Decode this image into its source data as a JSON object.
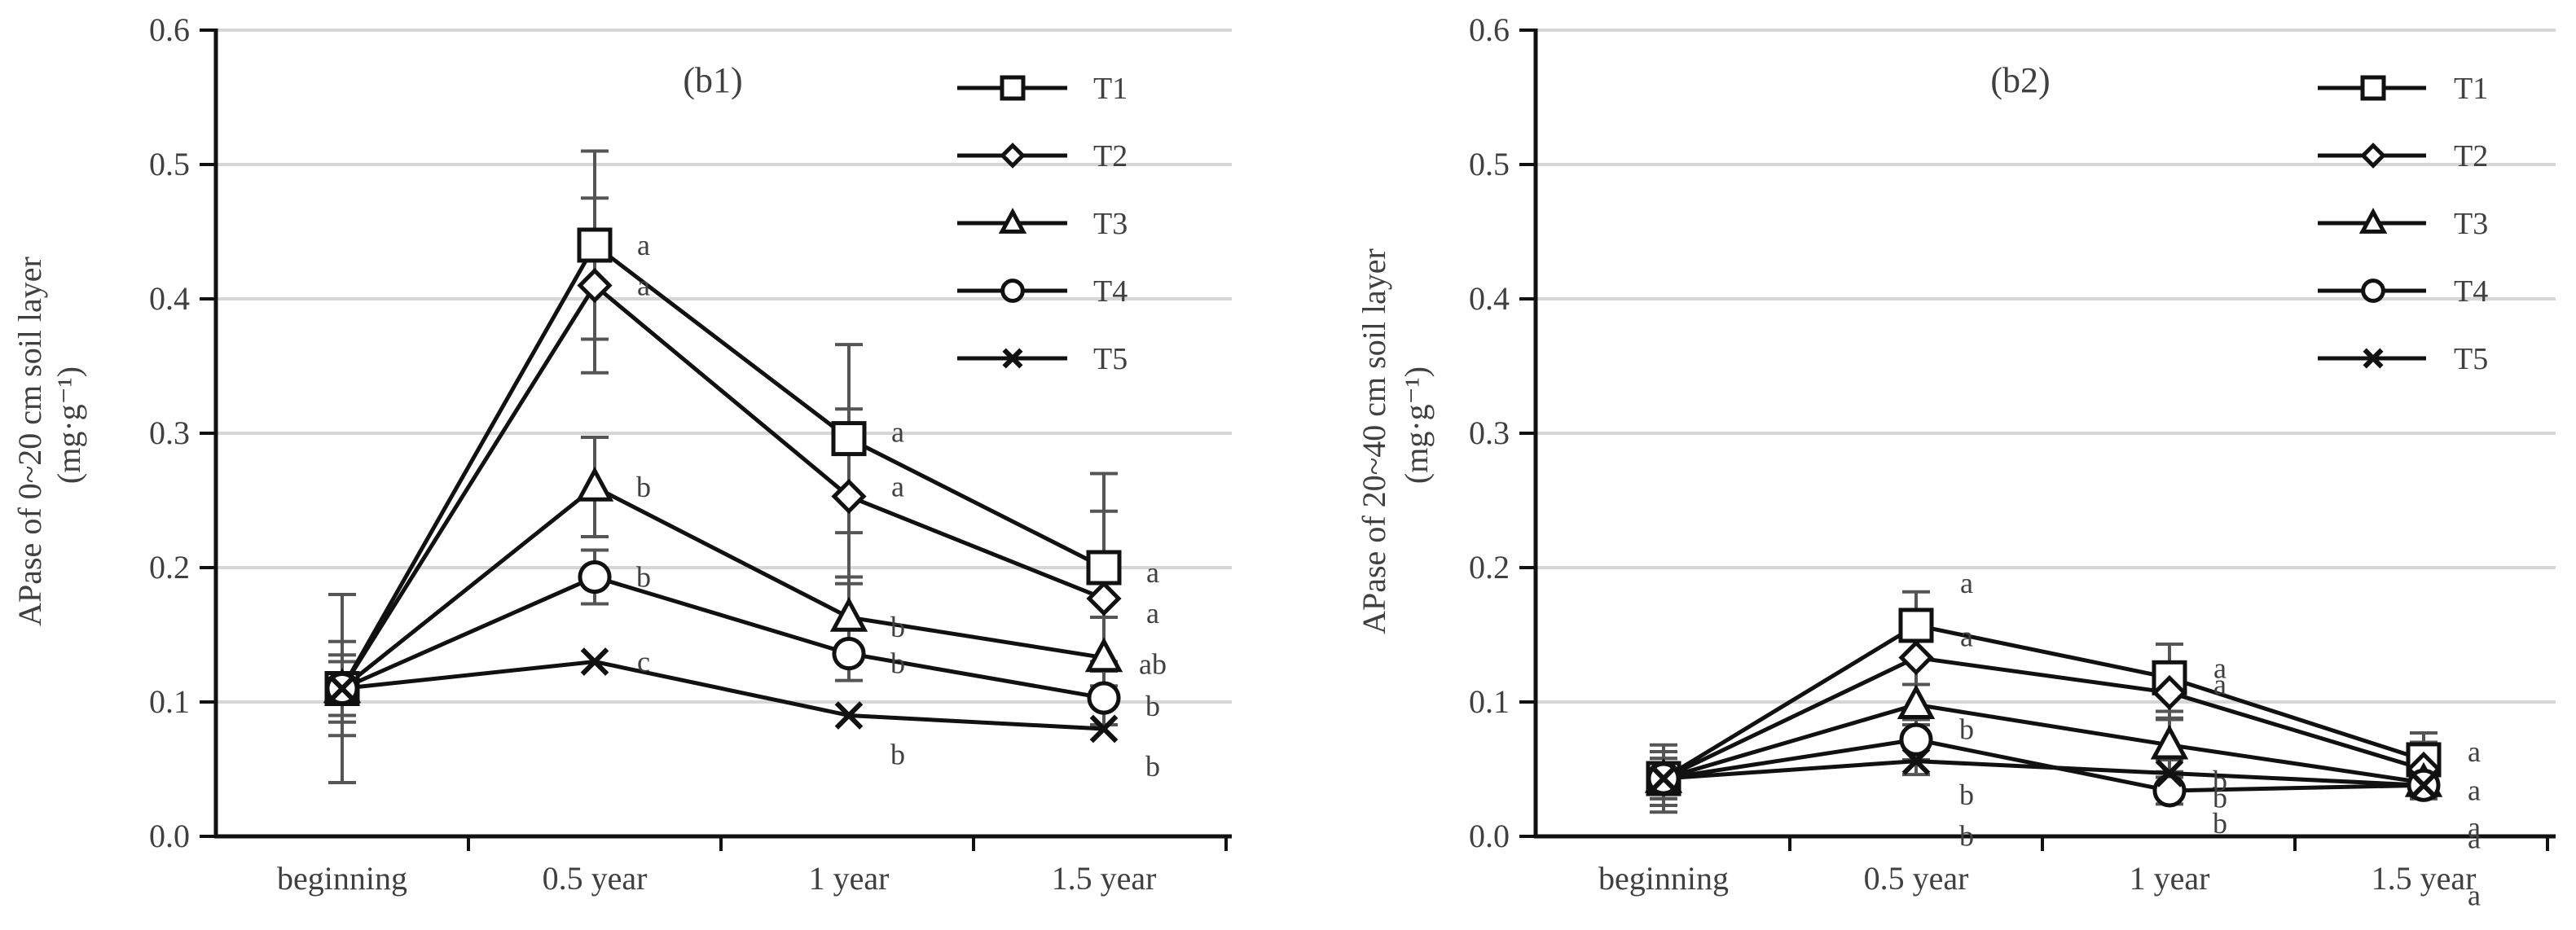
{
  "chart_data": [
    {
      "type": "line",
      "panel_label": "(b1)",
      "ylabel_line1": "APase of 0~20 cm soil layer",
      "ylabel_line2": "(mg·g⁻¹)",
      "xlabel": "",
      "categories": [
        "beginning",
        "0.5 year",
        "1 year",
        "1.5 year"
      ],
      "ylim": [
        0,
        0.6
      ],
      "yticks": [
        "0.0",
        "0.1",
        "0.2",
        "0.3",
        "0.4",
        "0.5",
        "0.6"
      ],
      "grid": true,
      "legend_position": "top-right",
      "series": [
        {
          "name": "T1",
          "marker": "square",
          "values": [
            0.11,
            0.44,
            0.296,
            0.2
          ],
          "errors": [
            0.07,
            0.07,
            0.07,
            0.07
          ],
          "labels": [
            "",
            "a",
            "a",
            "a"
          ]
        },
        {
          "name": "T2",
          "marker": "diamond",
          "values": [
            0.11,
            0.41,
            0.253,
            0.177
          ],
          "errors": [
            0.035,
            0.065,
            0.065,
            0.065
          ],
          "labels": [
            "",
            "a",
            "a",
            "a"
          ]
        },
        {
          "name": "T3",
          "marker": "triangle",
          "values": [
            0.11,
            0.26,
            0.163,
            0.133
          ],
          "errors": [
            0.025,
            0.037,
            0.03,
            0.03
          ],
          "labels": [
            "",
            "b",
            "b",
            "ab"
          ]
        },
        {
          "name": "T4",
          "marker": "circle",
          "values": [
            0.11,
            0.193,
            0.136,
            0.103
          ],
          "errors": [
            0.02,
            0.02,
            0.02,
            0.02
          ],
          "labels": [
            "",
            "b",
            "b",
            "b"
          ]
        },
        {
          "name": "T5",
          "marker": "x",
          "values": [
            0.11,
            0.13,
            0.09,
            0.08
          ],
          "errors": [
            0,
            0,
            0,
            0
          ],
          "labels": [
            "",
            "c",
            "b",
            "b"
          ]
        }
      ]
    },
    {
      "type": "line",
      "panel_label": "(b2)",
      "ylabel_line1": "APase of  20~40 cm soil layer",
      "ylabel_line2": "(mg·g⁻¹)",
      "xlabel": "",
      "categories": [
        "beginning",
        "0.5 year",
        "1 year",
        "1.5 year"
      ],
      "ylim": [
        0,
        0.6
      ],
      "yticks": [
        "0.0",
        "0.1",
        "0.2",
        "0.3",
        "0.4",
        "0.5",
        "0.6"
      ],
      "grid": true,
      "legend_position": "top-right",
      "series": [
        {
          "name": "T1",
          "marker": "square",
          "values": [
            0.043,
            0.157,
            0.118,
            0.057
          ],
          "errors": [
            0.025,
            0.025,
            0.025,
            0.02
          ],
          "labels": [
            "",
            "a",
            "a",
            "a"
          ]
        },
        {
          "name": "T2",
          "marker": "diamond",
          "values": [
            0.043,
            0.133,
            0.107,
            0.05
          ],
          "errors": [
            0.02,
            0.02,
            0.02,
            0.02
          ],
          "labels": [
            "",
            "a",
            "a",
            "a"
          ]
        },
        {
          "name": "T3",
          "marker": "triangle",
          "values": [
            0.043,
            0.098,
            0.068,
            0.04
          ],
          "errors": [
            0.015,
            0.015,
            0.02,
            0.01
          ],
          "labels": [
            "",
            "b",
            "b",
            "a"
          ]
        },
        {
          "name": "T4",
          "marker": "circle",
          "values": [
            0.043,
            0.072,
            0.034,
            0.038
          ],
          "errors": [
            0.015,
            0.015,
            0.01,
            0.01
          ],
          "labels": [
            "",
            "b",
            "b",
            "a"
          ]
        },
        {
          "name": "T5",
          "marker": "x",
          "values": [
            0.043,
            0.056,
            0.047,
            0.038
          ],
          "errors": [
            0.01,
            0.01,
            0.01,
            0.01
          ],
          "labels": [
            "",
            "b",
            "b",
            "a"
          ]
        }
      ]
    }
  ]
}
